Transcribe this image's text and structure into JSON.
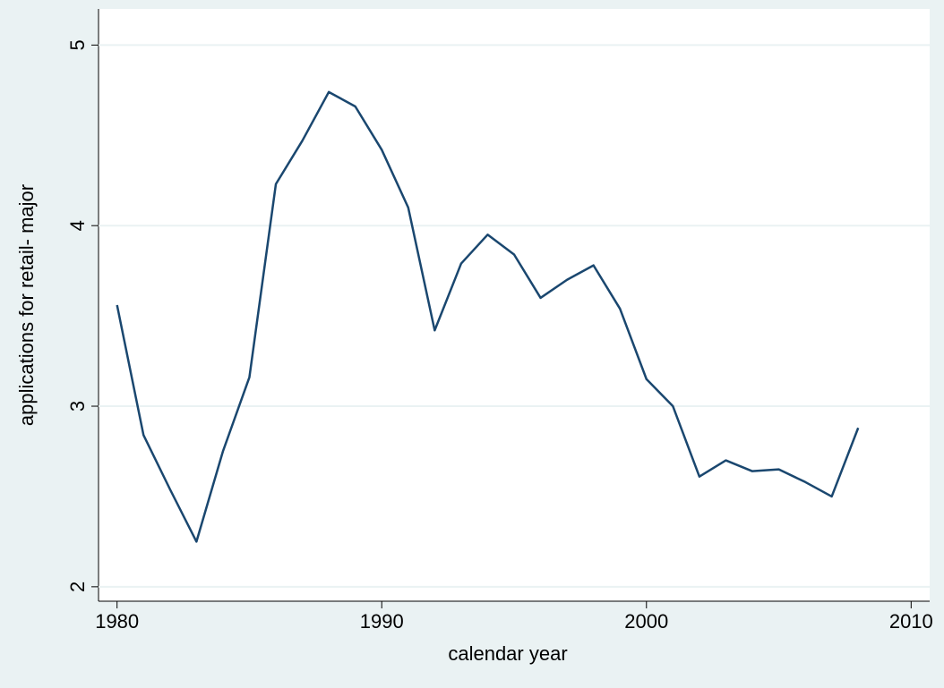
{
  "chart_data": {
    "type": "line",
    "x_label": "calendar year",
    "y_label": "applications for retail- major",
    "x": [
      1980,
      1981,
      1982,
      1983,
      1984,
      1985,
      1986,
      1987,
      1988,
      1989,
      1990,
      1991,
      1992,
      1993,
      1994,
      1995,
      1996,
      1997,
      1998,
      1999,
      2000,
      2001,
      2002,
      2003,
      2004,
      2005,
      2006,
      2007,
      2008
    ],
    "series": [
      {
        "color": "#1a476f",
        "values": [
          3.56,
          2.84,
          2.54,
          2.25,
          2.75,
          3.16,
          4.23,
          4.47,
          4.74,
          4.66,
          4.42,
          4.1,
          3.42,
          3.79,
          3.95,
          3.84,
          3.6,
          3.7,
          3.78,
          3.54,
          3.15,
          3.0,
          2.61,
          2.7,
          2.64,
          2.65,
          2.58,
          2.5,
          2.88
        ]
      }
    ],
    "xlim": [
      1979.3,
      2010.7
    ],
    "xticks": [
      1980,
      1990,
      2000,
      2010
    ],
    "ylim": [
      1.92,
      5.2
    ],
    "yticks": [
      2,
      3,
      4,
      5
    ],
    "grid": true
  }
}
